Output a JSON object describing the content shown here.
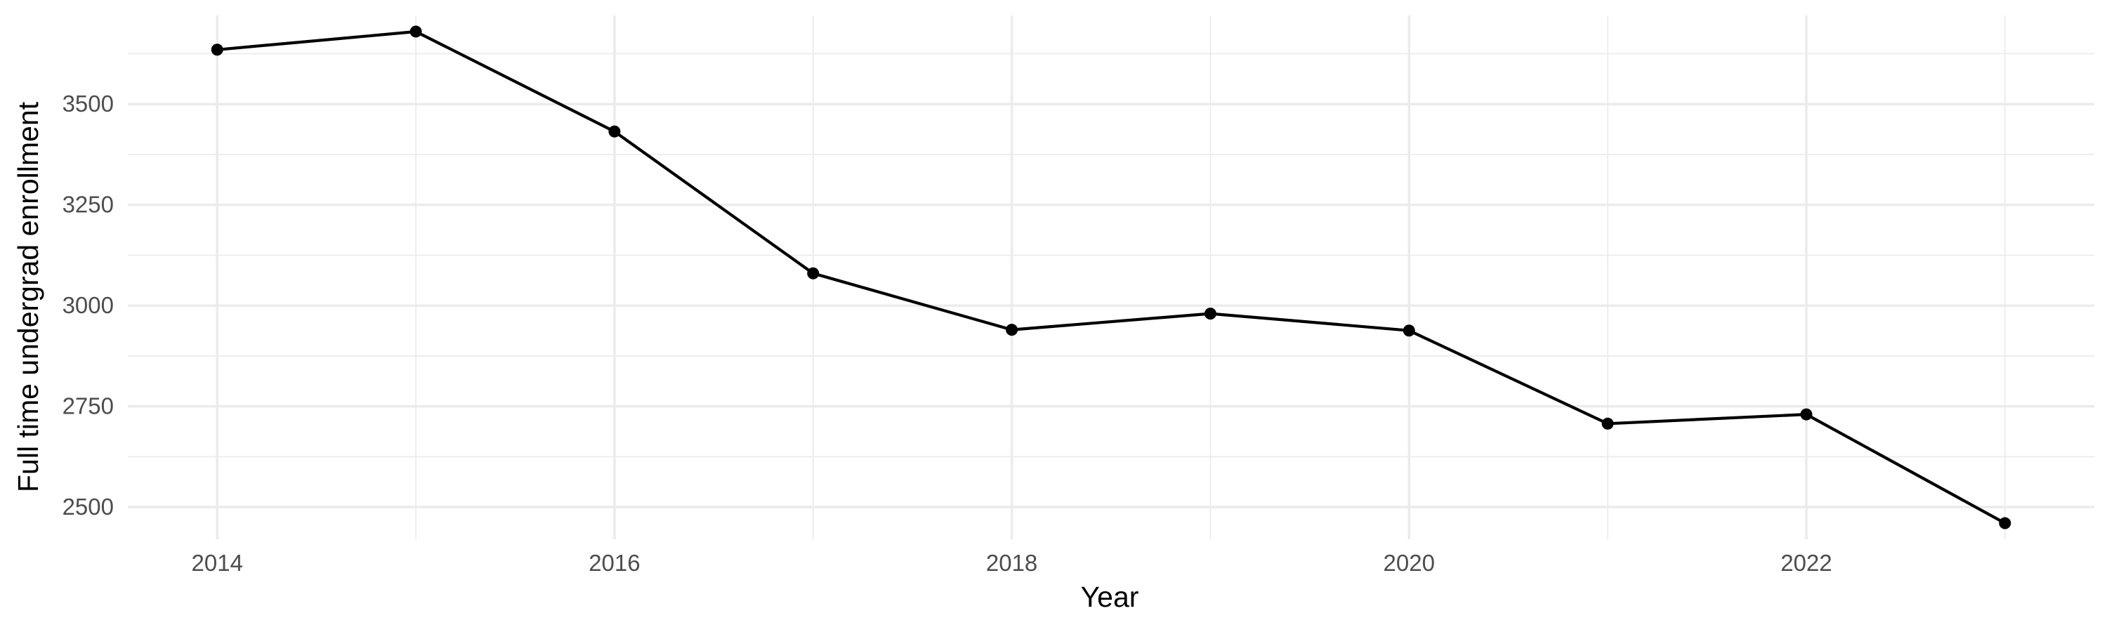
{
  "chart_data": {
    "type": "line",
    "xlabel": "Year",
    "ylabel": "Full time undergrad enrollment",
    "xlim": [
      2013.55,
      2023.45
    ],
    "ylim": [
      2420,
      3720
    ],
    "x_major_ticks": [
      2014,
      2016,
      2018,
      2020,
      2022
    ],
    "x_minor_ticks": [
      2015,
      2017,
      2019,
      2021,
      2023
    ],
    "y_major_ticks": [
      2500,
      2750,
      3000,
      3250,
      3500
    ],
    "y_minor_ticks": [
      2625,
      2875,
      3125,
      3375,
      3625
    ],
    "x_tick_labels": [
      "2014",
      "2016",
      "2018",
      "2020",
      "2022"
    ],
    "y_tick_labels": [
      "2500",
      "2750",
      "3000",
      "3250",
      "3500"
    ],
    "grid": true,
    "legend": "none",
    "line_color": "#000000",
    "point_color": "#000000",
    "grid_color": "#ebebeb",
    "series": [
      {
        "x": [
          2014,
          2015,
          2016,
          2017,
          2018,
          2019,
          2020,
          2021,
          2022,
          2023
        ],
        "values": [
          3635,
          3680,
          3432,
          3080,
          2940,
          2980,
          2938,
          2707,
          2730,
          2460
        ]
      }
    ]
  }
}
